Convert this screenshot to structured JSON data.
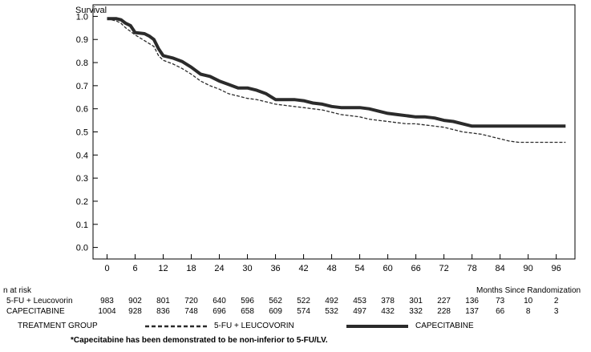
{
  "chart_data": {
    "type": "line",
    "ylabel": "Survival",
    "xlabel": "Months Since Randomization",
    "x_ticks": [
      0,
      6,
      12,
      18,
      24,
      30,
      36,
      42,
      48,
      54,
      60,
      66,
      72,
      78,
      84,
      90,
      96
    ],
    "y_ticks": [
      0.0,
      0.1,
      0.2,
      0.3,
      0.4,
      0.5,
      0.6,
      0.7,
      0.8,
      0.9,
      1.0
    ],
    "y_tick_labels": [
      "0.0",
      "0.1",
      "0.2",
      "0.3",
      "0.4",
      "0.5",
      "0.6",
      "0.7",
      "0.8",
      "0.9",
      "1.0"
    ],
    "xlim": [
      -3,
      100
    ],
    "ylim": [
      -0.05,
      1.05
    ],
    "series": [
      {
        "name": "CAPECITABINE",
        "style": "solid",
        "color": "#2b2b2b",
        "points": [
          [
            0,
            0.99
          ],
          [
            2,
            0.99
          ],
          [
            3,
            0.985
          ],
          [
            4,
            0.97
          ],
          [
            5,
            0.96
          ],
          [
            6,
            0.93
          ],
          [
            8,
            0.925
          ],
          [
            9,
            0.915
          ],
          [
            10,
            0.9
          ],
          [
            11,
            0.86
          ],
          [
            12,
            0.83
          ],
          [
            14,
            0.82
          ],
          [
            16,
            0.805
          ],
          [
            18,
            0.78
          ],
          [
            20,
            0.75
          ],
          [
            22,
            0.74
          ],
          [
            24,
            0.72
          ],
          [
            26,
            0.705
          ],
          [
            28,
            0.69
          ],
          [
            30,
            0.69
          ],
          [
            32,
            0.68
          ],
          [
            34,
            0.665
          ],
          [
            36,
            0.64
          ],
          [
            38,
            0.64
          ],
          [
            40,
            0.64
          ],
          [
            42,
            0.635
          ],
          [
            44,
            0.625
          ],
          [
            46,
            0.62
          ],
          [
            48,
            0.61
          ],
          [
            50,
            0.605
          ],
          [
            52,
            0.605
          ],
          [
            54,
            0.605
          ],
          [
            56,
            0.6
          ],
          [
            58,
            0.59
          ],
          [
            60,
            0.58
          ],
          [
            62,
            0.575
          ],
          [
            64,
            0.57
          ],
          [
            66,
            0.565
          ],
          [
            68,
            0.565
          ],
          [
            70,
            0.56
          ],
          [
            72,
            0.55
          ],
          [
            74,
            0.545
          ],
          [
            76,
            0.535
          ],
          [
            78,
            0.525
          ],
          [
            80,
            0.525
          ],
          [
            84,
            0.525
          ],
          [
            90,
            0.525
          ],
          [
            98,
            0.525
          ]
        ]
      },
      {
        "name": "5-FU + LEUCOVORIN",
        "style": "dashed",
        "color": "#2b2b2b",
        "points": [
          [
            0,
            0.99
          ],
          [
            2,
            0.98
          ],
          [
            3,
            0.97
          ],
          [
            4,
            0.95
          ],
          [
            5,
            0.935
          ],
          [
            6,
            0.92
          ],
          [
            8,
            0.895
          ],
          [
            10,
            0.87
          ],
          [
            11,
            0.83
          ],
          [
            12,
            0.81
          ],
          [
            14,
            0.795
          ],
          [
            16,
            0.775
          ],
          [
            18,
            0.75
          ],
          [
            20,
            0.72
          ],
          [
            22,
            0.7
          ],
          [
            24,
            0.685
          ],
          [
            26,
            0.665
          ],
          [
            28,
            0.655
          ],
          [
            30,
            0.645
          ],
          [
            32,
            0.64
          ],
          [
            34,
            0.63
          ],
          [
            36,
            0.62
          ],
          [
            38,
            0.615
          ],
          [
            40,
            0.61
          ],
          [
            42,
            0.605
          ],
          [
            44,
            0.6
          ],
          [
            46,
            0.595
          ],
          [
            48,
            0.585
          ],
          [
            50,
            0.575
          ],
          [
            52,
            0.57
          ],
          [
            54,
            0.565
          ],
          [
            56,
            0.555
          ],
          [
            58,
            0.55
          ],
          [
            60,
            0.545
          ],
          [
            62,
            0.54
          ],
          [
            64,
            0.535
          ],
          [
            66,
            0.535
          ],
          [
            68,
            0.53
          ],
          [
            70,
            0.525
          ],
          [
            72,
            0.52
          ],
          [
            74,
            0.51
          ],
          [
            76,
            0.5
          ],
          [
            78,
            0.495
          ],
          [
            80,
            0.49
          ],
          [
            82,
            0.48
          ],
          [
            84,
            0.47
          ],
          [
            86,
            0.46
          ],
          [
            88,
            0.455
          ],
          [
            90,
            0.455
          ],
          [
            94,
            0.455
          ],
          [
            98,
            0.455
          ]
        ]
      }
    ]
  },
  "risk_table": {
    "heading": "n at risk",
    "axis_caption": "Months Since Randomization",
    "rows": [
      {
        "label": "5-FU + Leucovorin",
        "values": [
          "983",
          "902",
          "801",
          "720",
          "640",
          "596",
          "562",
          "522",
          "492",
          "453",
          "378",
          "301",
          "227",
          "136",
          "73",
          "10",
          "2"
        ]
      },
      {
        "label": "CAPECITABINE",
        "values": [
          "1004",
          "928",
          "836",
          "748",
          "696",
          "658",
          "609",
          "574",
          "532",
          "497",
          "432",
          "332",
          "228",
          "137",
          "66",
          "8",
          "3"
        ]
      }
    ]
  },
  "legend": {
    "title": "TREATMENT GROUP",
    "items": [
      {
        "label": "5-FU + LEUCOVORIN",
        "style": "dashed"
      },
      {
        "label": "CAPECITABINE",
        "style": "solid"
      }
    ]
  },
  "footnote": "*Capecitabine has been demonstrated to be non-inferior to 5-FU/LV."
}
